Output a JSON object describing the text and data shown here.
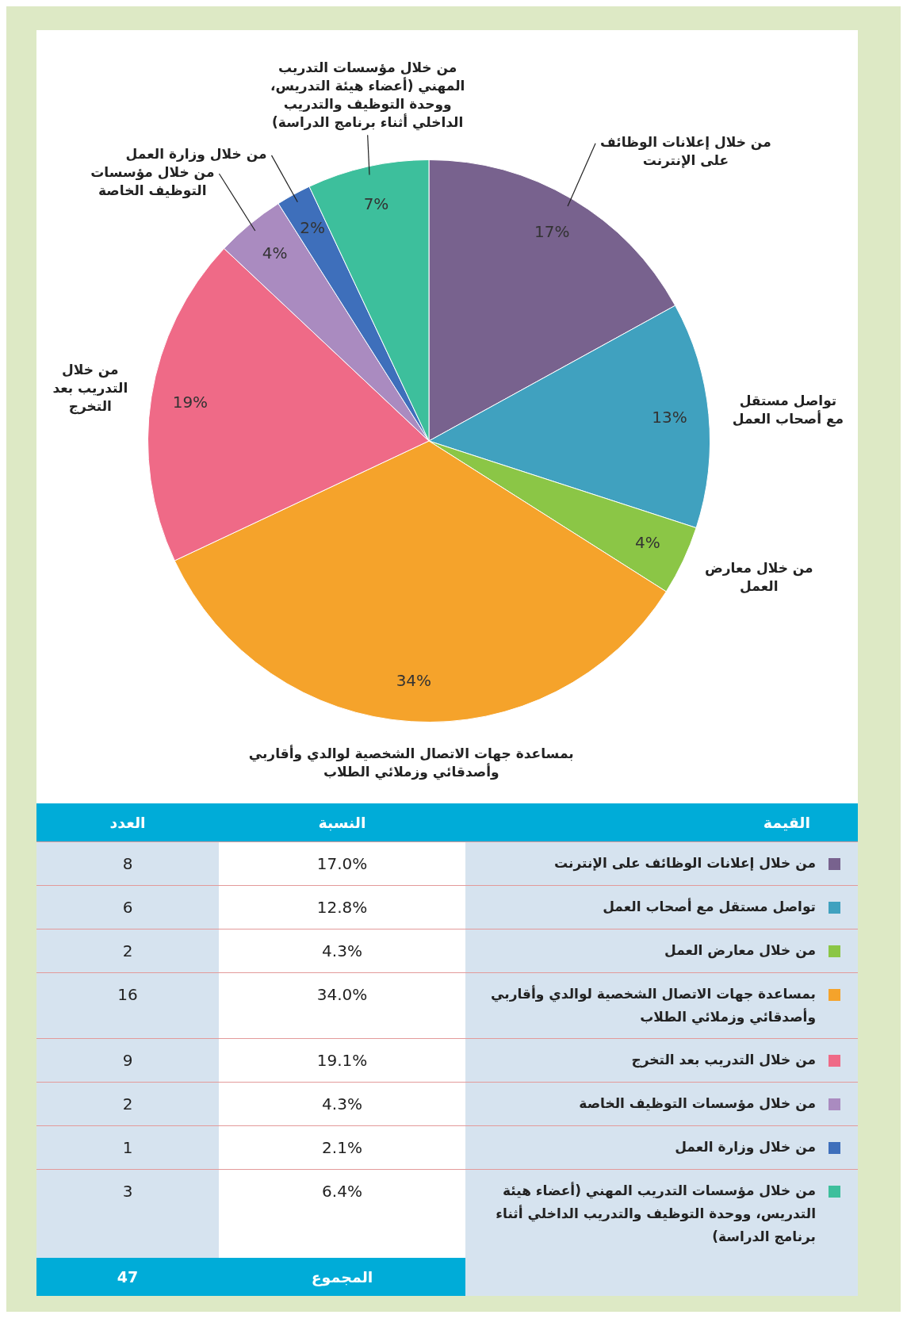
{
  "chart_data": [
    {
      "type": "pie",
      "categories": [
        "من خلال إعلانات الوظائف على الإنترنت",
        "تواصل مستقل مع أصحاب العمل",
        "من خلال معارض العمل",
        "بمساعدة جهات الاتصال الشخصية لوالدي وأقاربي وأصدقائي وزملائي الطلاب",
        "من خلال التدريب بعد التخرج",
        "من خلال مؤسسات التوظيف الخاصة",
        "من خلال وزارة العمل",
        "من خلال مؤسسات  التدريب المهني (أعضاء هيئة التدريس، ووحدة التوظيف والتدريب الداخلي أثناء برنامج الدراسة)"
      ],
      "values": [
        17,
        13,
        4,
        34,
        19,
        4,
        2,
        7
      ],
      "value_labels": [
        "17%",
        "13%",
        "4%",
        "34%",
        "19%",
        "4%",
        "2%",
        "7%"
      ],
      "colors": [
        "#78628e",
        "#40a1bf",
        "#8bc646",
        "#f5a32b",
        "#ef6a87",
        "#aa8bc0",
        "#3e6fbb",
        "#3dbf9c"
      ]
    },
    {
      "type": "other",
      "colors": [
        "#78628e",
        "#40a1bf",
        "#8bc646",
        "#f5a32b",
        "#ef6a87",
        "#aa8bc0",
        "#3e6fbb",
        "#3dbf9c"
      ],
      "annotations": [
        "القيمة",
        "النسبة",
        "العدد",
        "من خلال إعلانات الوظائف على الإنترنت",
        "17.0%",
        "8",
        "تواصل مستقل مع أصحاب العمل",
        "12.8%",
        "6",
        "من خلال معارض العمل",
        "4.3%",
        "2",
        "بمساعدة جهات الاتصال الشخصية لوالدي وأقاربي وأصدقائي وزملائي الطلاب",
        "34.0%",
        "16",
        "من خلال التدريب بعد التخرج",
        "19.1%",
        "9",
        "من خلال مؤسسات التوظيف الخاصة",
        "4.3%",
        "2",
        "من خلال وزارة العمل",
        "2.1%",
        "1",
        "من خلال مؤسسات  التدريب المهني (أعضاء هيئة التدريس، ووحدة التوظيف والتدريب الداخلي أثناء برنامج الدراسة)",
        "6.4%",
        "3",
        "المجموع",
        "47"
      ]
    }
  ]
}
